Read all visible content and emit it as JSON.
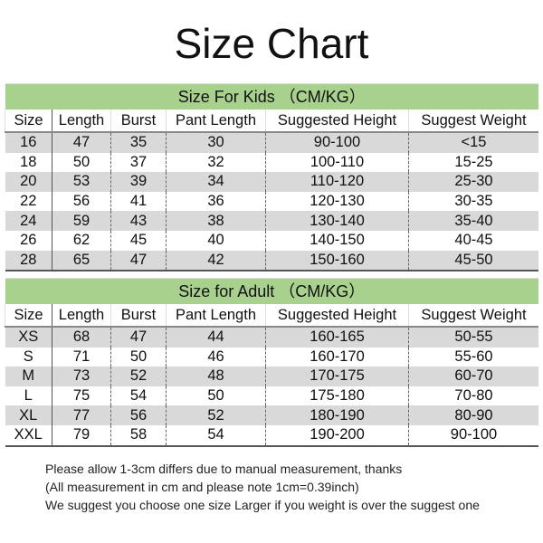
{
  "title": "Size Chart",
  "columns": [
    "Size",
    "Length",
    "Burst",
    "Pant Length",
    "Suggested Height",
    "Suggest Weight"
  ],
  "kids": {
    "heading": "Size For Kids （CM/KG）",
    "rows": [
      [
        "16",
        "47",
        "35",
        "30",
        "90-100",
        "<15"
      ],
      [
        "18",
        "50",
        "37",
        "32",
        "100-110",
        "15-25"
      ],
      [
        "20",
        "53",
        "39",
        "34",
        "110-120",
        "25-30"
      ],
      [
        "22",
        "56",
        "41",
        "36",
        "120-130",
        "30-35"
      ],
      [
        "24",
        "59",
        "43",
        "38",
        "130-140",
        "35-40"
      ],
      [
        "26",
        "62",
        "45",
        "40",
        "140-150",
        "40-45"
      ],
      [
        "28",
        "65",
        "47",
        "42",
        "150-160",
        "45-50"
      ]
    ]
  },
  "adult": {
    "heading": "Size for Adult （CM/KG）",
    "rows": [
      [
        "XS",
        "68",
        "47",
        "44",
        "160-165",
        "50-55"
      ],
      [
        "S",
        "71",
        "50",
        "46",
        "160-170",
        "55-60"
      ],
      [
        "M",
        "73",
        "52",
        "48",
        "170-175",
        "60-70"
      ],
      [
        "L",
        "75",
        "54",
        "50",
        "175-180",
        "70-80"
      ],
      [
        "XL",
        "77",
        "56",
        "52",
        "180-190",
        "80-90"
      ],
      [
        "XXL",
        "79",
        "58",
        "54",
        "190-200",
        "90-100"
      ]
    ]
  },
  "notes": [
    "Please allow 1-3cm differs due to manual measurement, thanks",
    "(All measurement in cm and please note 1cm=0.39inch)",
    "We suggest you choose one size Larger if you weight is over the suggest one"
  ],
  "colors": {
    "band": "#a9d18e",
    "stripe": "#d9d9d9"
  }
}
